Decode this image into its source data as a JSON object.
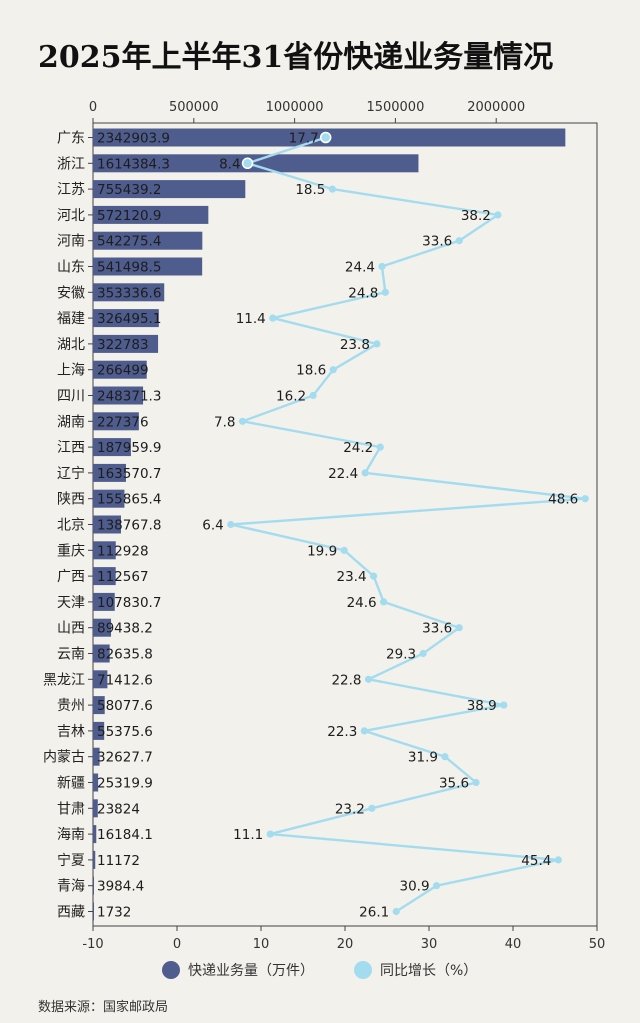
{
  "title": "2025年上半年31省份快递业务量情况",
  "source": "数据来源：国家邮政局",
  "chart_data": {
    "type": "bar",
    "orientation": "horizontal",
    "categories": [
      "广东",
      "浙江",
      "江苏",
      "河北",
      "河南",
      "山东",
      "安徽",
      "福建",
      "湖北",
      "上海",
      "四川",
      "湖南",
      "江西",
      "辽宁",
      "陕西",
      "北京",
      "重庆",
      "广西",
      "天津",
      "山西",
      "云南",
      "黑龙江",
      "贵州",
      "吉林",
      "内蒙古",
      "新疆",
      "甘肃",
      "海南",
      "宁夏",
      "青海",
      "西藏"
    ],
    "series": [
      {
        "name": "快递业务量（万件）",
        "type": "bar",
        "axis": "top",
        "color": "#4f5d8e",
        "values": [
          2342903.9,
          1614384.3,
          755439.2,
          572120.9,
          542275.4,
          541498.5,
          353336.6,
          326495.1,
          322783,
          266499,
          248371.3,
          227376,
          187959.9,
          163570.7,
          155865.4,
          138767.8,
          112928,
          112567,
          107830.7,
          89438.2,
          82635.8,
          71412.6,
          58077.6,
          55375.6,
          32627.7,
          25319.9,
          23824,
          16184.1,
          11172,
          3984.4,
          1732
        ],
        "labels": [
          "2342903.9",
          "1614384.3",
          "755439.2",
          "572120.9",
          "542275.4",
          "541498.5",
          "353336.6",
          "326495.1",
          "322783",
          "266499",
          "248371.3",
          "227376",
          "187959.9",
          "163570.7",
          "155865.4",
          "138767.8",
          "112928",
          "112567",
          "107830.7",
          "89438.2",
          "82635.8",
          "71412.6",
          "58077.6",
          "55375.6",
          "32627.7",
          "25319.9",
          "23824",
          "16184.1",
          "11172",
          "3984.4",
          "1732"
        ]
      },
      {
        "name": "同比增长（%）",
        "type": "line",
        "axis": "bottom",
        "color": "#a3dcee",
        "values": [
          17.7,
          8.4,
          18.5,
          38.2,
          33.6,
          24.4,
          24.8,
          11.4,
          23.8,
          18.6,
          16.2,
          7.8,
          24.2,
          22.4,
          48.6,
          6.4,
          19.9,
          23.4,
          24.6,
          33.6,
          29.3,
          22.8,
          38.9,
          22.3,
          31.9,
          35.6,
          23.2,
          11.1,
          45.4,
          30.9,
          26.1
        ],
        "labels": [
          "17.7",
          "8.4",
          "18.5",
          "38.2",
          "33.6",
          "24.4",
          "24.8",
          "11.4",
          "23.8",
          "18.6",
          "16.2",
          "7.8",
          "24.2",
          "22.4",
          "48.6",
          "6.4",
          "19.9",
          "23.4",
          "24.6",
          "33.6",
          "29.3",
          "22.8",
          "38.9",
          "22.3",
          "31.9",
          "35.6",
          "23.2",
          "11.1",
          "45.4",
          "30.9",
          "26.1"
        ]
      }
    ],
    "top_axis": {
      "min": 0,
      "max": 2500000,
      "ticks": [
        0,
        500000,
        1000000,
        1500000,
        2000000
      ],
      "tick_labels": [
        "0",
        "500000",
        "1000000",
        "1500000",
        "2000000"
      ]
    },
    "bottom_axis": {
      "min": -10,
      "max": 50,
      "ticks": [
        -10,
        0,
        10,
        20,
        30,
        40,
        50
      ],
      "tick_labels": [
        "-10",
        "0",
        "10",
        "20",
        "30",
        "40",
        "50"
      ]
    },
    "grid": false,
    "legend_position": "bottom"
  }
}
